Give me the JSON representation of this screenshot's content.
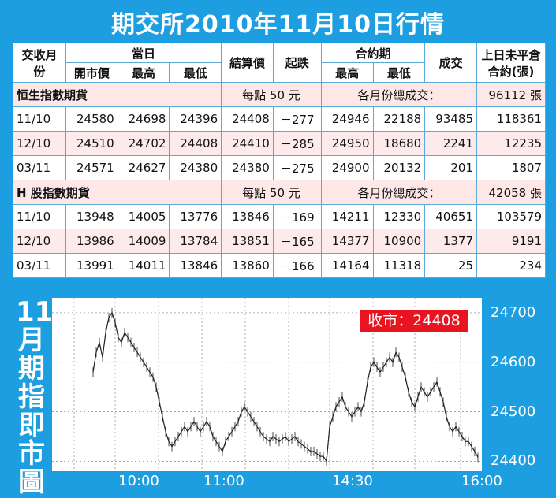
{
  "title": "期交所2010年11月10日行情",
  "headers": {
    "month": "交收月份",
    "today": "當日",
    "open": "開市價",
    "high": "最高",
    "low": "最低",
    "settle": "結算價",
    "change": "起跌",
    "contract": "合約期",
    "c_high": "最高",
    "c_low": "最低",
    "volume": "成交",
    "oi": "上日未平倉合約(張)"
  },
  "sections": [
    {
      "name": "恒生指數期貨",
      "per_point": "每點 50 元",
      "vol_label": "各月份總成交：",
      "vol_total": "96112 張",
      "rows": [
        [
          "11/10",
          "24580",
          "24698",
          "24396",
          "24408",
          "－277",
          "24946",
          "22188",
          "93485",
          "118361"
        ],
        [
          "12/10",
          "24510",
          "24702",
          "24408",
          "24410",
          "－285",
          "24950",
          "18680",
          "2241",
          "12235"
        ],
        [
          "03/11",
          "24571",
          "24627",
          "24380",
          "24380",
          "－275",
          "24900",
          "20132",
          "201",
          "1807"
        ]
      ]
    },
    {
      "name": "H 股指數期貨",
      "per_point": "每點 50 元",
      "vol_label": "各月份總成交：",
      "vol_total": "42058 張",
      "rows": [
        [
          "11/10",
          "13948",
          "14005",
          "13776",
          "13846",
          "－169",
          "14211",
          "12330",
          "40651",
          "103579"
        ],
        [
          "12/10",
          "13986",
          "14009",
          "13784",
          "13851",
          "－165",
          "14377",
          "10900",
          "1377",
          "9191"
        ],
        [
          "03/11",
          "13991",
          "14011",
          "13846",
          "13860",
          "－166",
          "14164",
          "11318",
          "25",
          "234"
        ]
      ]
    }
  ],
  "chart_label": "11月期指即市圖",
  "chart_data": {
    "type": "line",
    "title": "",
    "close_label": "收市：24408",
    "y_ticks": [
      24700,
      24600,
      24500,
      24400
    ],
    "ylim": [
      24380,
      24730
    ],
    "x_ticks": [
      "10:00",
      "11:00",
      "14:30",
      "16:00"
    ],
    "colors": {
      "line": "#222222",
      "grid": "#999999"
    }
  }
}
